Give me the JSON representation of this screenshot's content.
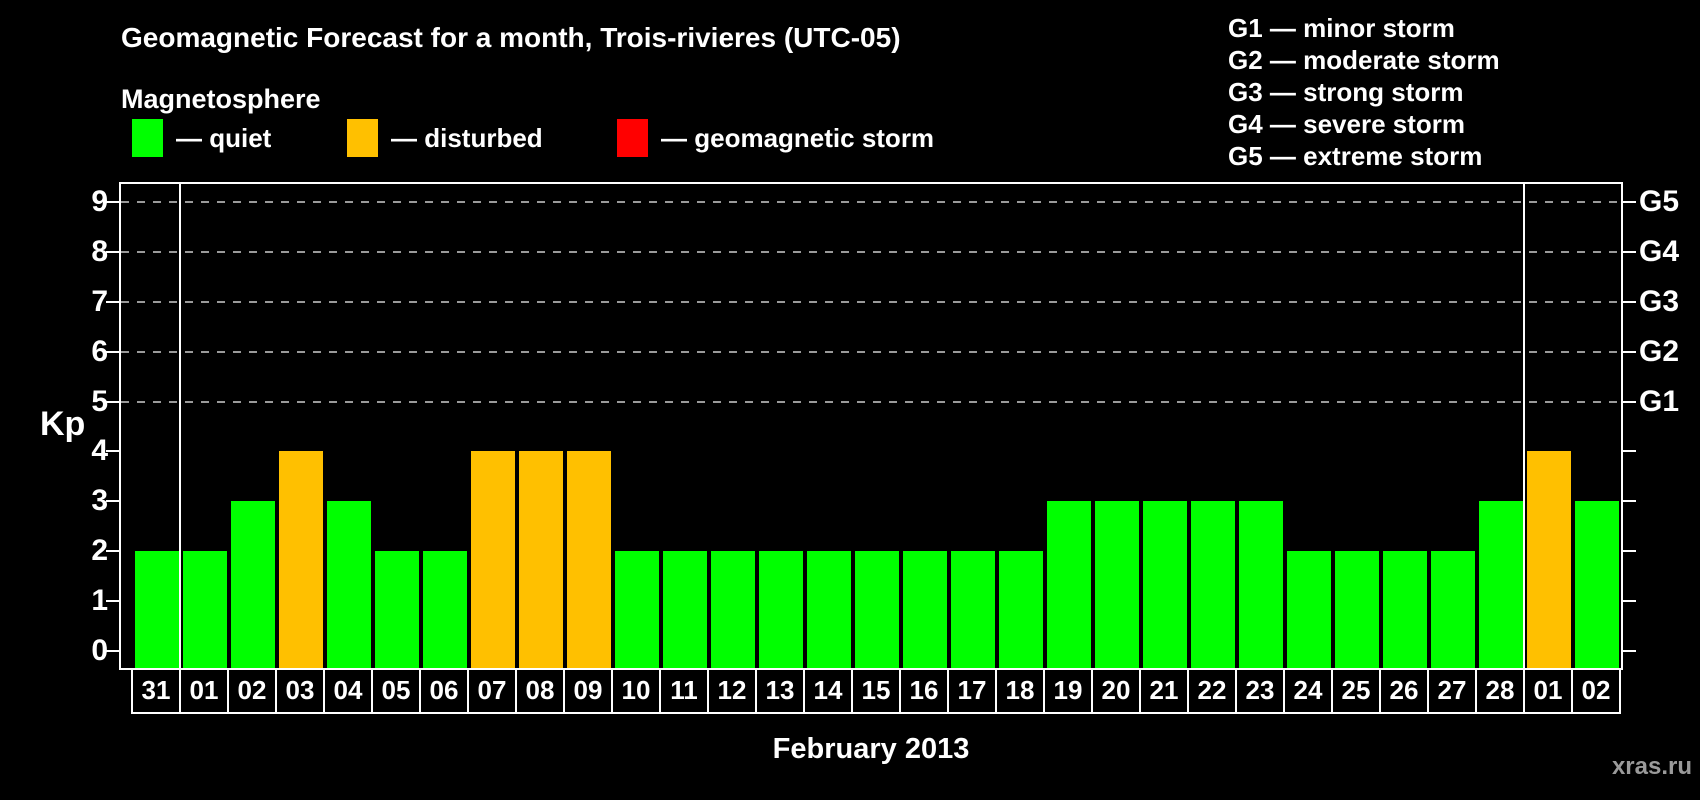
{
  "header": {
    "title": "Geomagnetic Forecast for a month, Trois-rivieres (UTC-05)",
    "subtitle": "Magnetosphere"
  },
  "legend": {
    "items": [
      {
        "state": "quiet",
        "color": "#00ff00",
        "label": "— quiet"
      },
      {
        "state": "disturbed",
        "color": "#ffc000",
        "label": "— disturbed"
      },
      {
        "state": "storm",
        "color": "#ff0000",
        "label": "— geomagnetic storm"
      }
    ]
  },
  "storm_scale_legend": {
    "lines": [
      "G1 — minor storm",
      "G2 — moderate storm",
      "G3 — strong storm",
      "G4 — severe storm",
      "G5 — extreme storm"
    ]
  },
  "footer": {
    "month_label": "February 2013",
    "watermark": "xras.ru"
  },
  "chart_data": {
    "type": "bar",
    "title": "Geomagnetic Forecast for a month, Trois-rivieres (UTC-05)",
    "xlabel": "February 2013",
    "ylabel": "Kp",
    "ylim": [
      0,
      9
    ],
    "yticks": [
      0,
      1,
      2,
      3,
      4,
      5,
      6,
      7,
      8,
      9
    ],
    "dashed_gridlines_at_kp": [
      5,
      6,
      7,
      8,
      9
    ],
    "right_axis": [
      {
        "kp": 5,
        "label": "G1"
      },
      {
        "kp": 6,
        "label": "G2"
      },
      {
        "kp": 7,
        "label": "G3"
      },
      {
        "kp": 8,
        "label": "G4"
      },
      {
        "kp": 9,
        "label": "G5"
      }
    ],
    "legend_position": "top",
    "grid": "dashed horizontal lines at storm levels G1–G5 only",
    "month_separator_before_day": "01",
    "state_colors": {
      "quiet": "#00ff00",
      "disturbed": "#ffc000",
      "storm": "#ff0000"
    },
    "bars": [
      {
        "day": "31",
        "kp": 2,
        "state": "quiet"
      },
      {
        "day": "01",
        "kp": 2,
        "state": "quiet"
      },
      {
        "day": "02",
        "kp": 3,
        "state": "quiet"
      },
      {
        "day": "03",
        "kp": 4,
        "state": "disturbed"
      },
      {
        "day": "04",
        "kp": 3,
        "state": "quiet"
      },
      {
        "day": "05",
        "kp": 2,
        "state": "quiet"
      },
      {
        "day": "06",
        "kp": 2,
        "state": "quiet"
      },
      {
        "day": "07",
        "kp": 4,
        "state": "disturbed"
      },
      {
        "day": "08",
        "kp": 4,
        "state": "disturbed"
      },
      {
        "day": "09",
        "kp": 4,
        "state": "disturbed"
      },
      {
        "day": "10",
        "kp": 2,
        "state": "quiet"
      },
      {
        "day": "11",
        "kp": 2,
        "state": "quiet"
      },
      {
        "day": "12",
        "kp": 2,
        "state": "quiet"
      },
      {
        "day": "13",
        "kp": 2,
        "state": "quiet"
      },
      {
        "day": "14",
        "kp": 2,
        "state": "quiet"
      },
      {
        "day": "15",
        "kp": 2,
        "state": "quiet"
      },
      {
        "day": "16",
        "kp": 2,
        "state": "quiet"
      },
      {
        "day": "17",
        "kp": 2,
        "state": "quiet"
      },
      {
        "day": "18",
        "kp": 2,
        "state": "quiet"
      },
      {
        "day": "19",
        "kp": 3,
        "state": "quiet"
      },
      {
        "day": "20",
        "kp": 3,
        "state": "quiet"
      },
      {
        "day": "21",
        "kp": 3,
        "state": "quiet"
      },
      {
        "day": "22",
        "kp": 3,
        "state": "quiet"
      },
      {
        "day": "23",
        "kp": 3,
        "state": "quiet"
      },
      {
        "day": "24",
        "kp": 2,
        "state": "quiet"
      },
      {
        "day": "25",
        "kp": 2,
        "state": "quiet"
      },
      {
        "day": "26",
        "kp": 2,
        "state": "quiet"
      },
      {
        "day": "27",
        "kp": 2,
        "state": "quiet"
      },
      {
        "day": "28",
        "kp": 3,
        "state": "quiet"
      },
      {
        "day": "01",
        "kp": 4,
        "state": "disturbed"
      },
      {
        "day": "02",
        "kp": 3,
        "state": "quiet"
      }
    ]
  }
}
